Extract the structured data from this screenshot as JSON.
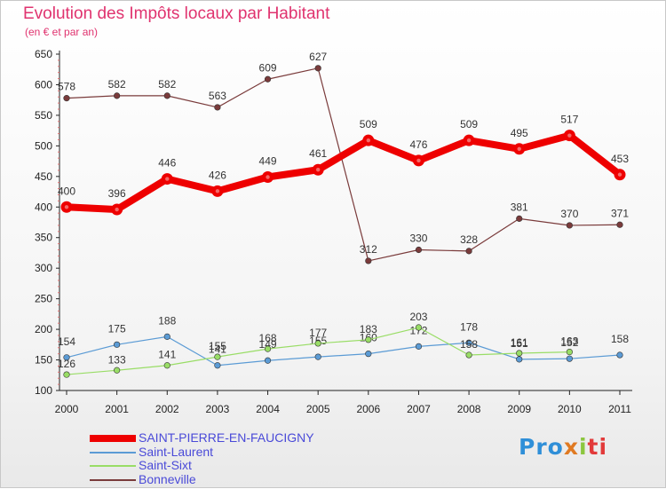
{
  "title": "Evolution des Impôts locaux par Habitant",
  "subtitle": "(en € et par an)",
  "logo": {
    "part1": "Pro",
    "part2": "x",
    "part3": "i",
    "part4": "ti"
  },
  "chart_data": {
    "type": "line",
    "title": "Evolution des Impôts locaux par Habitant",
    "subtitle": "(en € et par an)",
    "x": [
      "2000",
      "2001",
      "2002",
      "2003",
      "2004",
      "2005",
      "2006",
      "2007",
      "2008",
      "2009",
      "2010",
      "2011"
    ],
    "ylim": [
      100,
      650
    ],
    "yticks": [
      100,
      150,
      200,
      250,
      300,
      350,
      400,
      450,
      500,
      550,
      600,
      650
    ],
    "grid": false,
    "legend_position": "bottom-left",
    "series": [
      {
        "name": "SAINT-PIERRE-EN-FAUCIGNY",
        "color": "#ee0000",
        "width": 8,
        "values": [
          400,
          396,
          446,
          426,
          449,
          461,
          509,
          476,
          509,
          495,
          517,
          453
        ]
      },
      {
        "name": "Saint-Laurent",
        "color": "#5b9bd5",
        "width": 1.2,
        "values": [
          154,
          175,
          188,
          141,
          149,
          155,
          160,
          172,
          178,
          151,
          152,
          158
        ]
      },
      {
        "name": "Saint-Sixt",
        "color": "#99dd66",
        "width": 1.2,
        "values": [
          126,
          133,
          141,
          155,
          168,
          177,
          183,
          203,
          158,
          161,
          163,
          null
        ]
      },
      {
        "name": "Bonneville",
        "color": "#7a3b3b",
        "width": 1.2,
        "values": [
          578,
          582,
          582,
          563,
          609,
          627,
          312,
          330,
          328,
          381,
          370,
          371
        ]
      }
    ],
    "data_labels": {
      "SAINT-PIERRE-EN-FAUCIGNY": [
        "400",
        "396",
        "446",
        "426",
        "449",
        "461",
        "509",
        "476",
        "509",
        "495",
        "517",
        "453"
      ],
      "Saint-Laurent": [
        "154",
        "175",
        "188",
        "141",
        "149",
        "155",
        "160",
        "172",
        "178",
        "151",
        "152",
        "158"
      ],
      "Saint-Sixt": [
        "126",
        "133",
        "141",
        "155",
        "168",
        "177",
        "183",
        "203",
        "158",
        "161",
        "163",
        ""
      ],
      "Bonneville": [
        "578",
        "582",
        "582",
        "563",
        "609",
        "627",
        "312",
        "330",
        "328",
        "381",
        "370",
        "371"
      ]
    }
  }
}
